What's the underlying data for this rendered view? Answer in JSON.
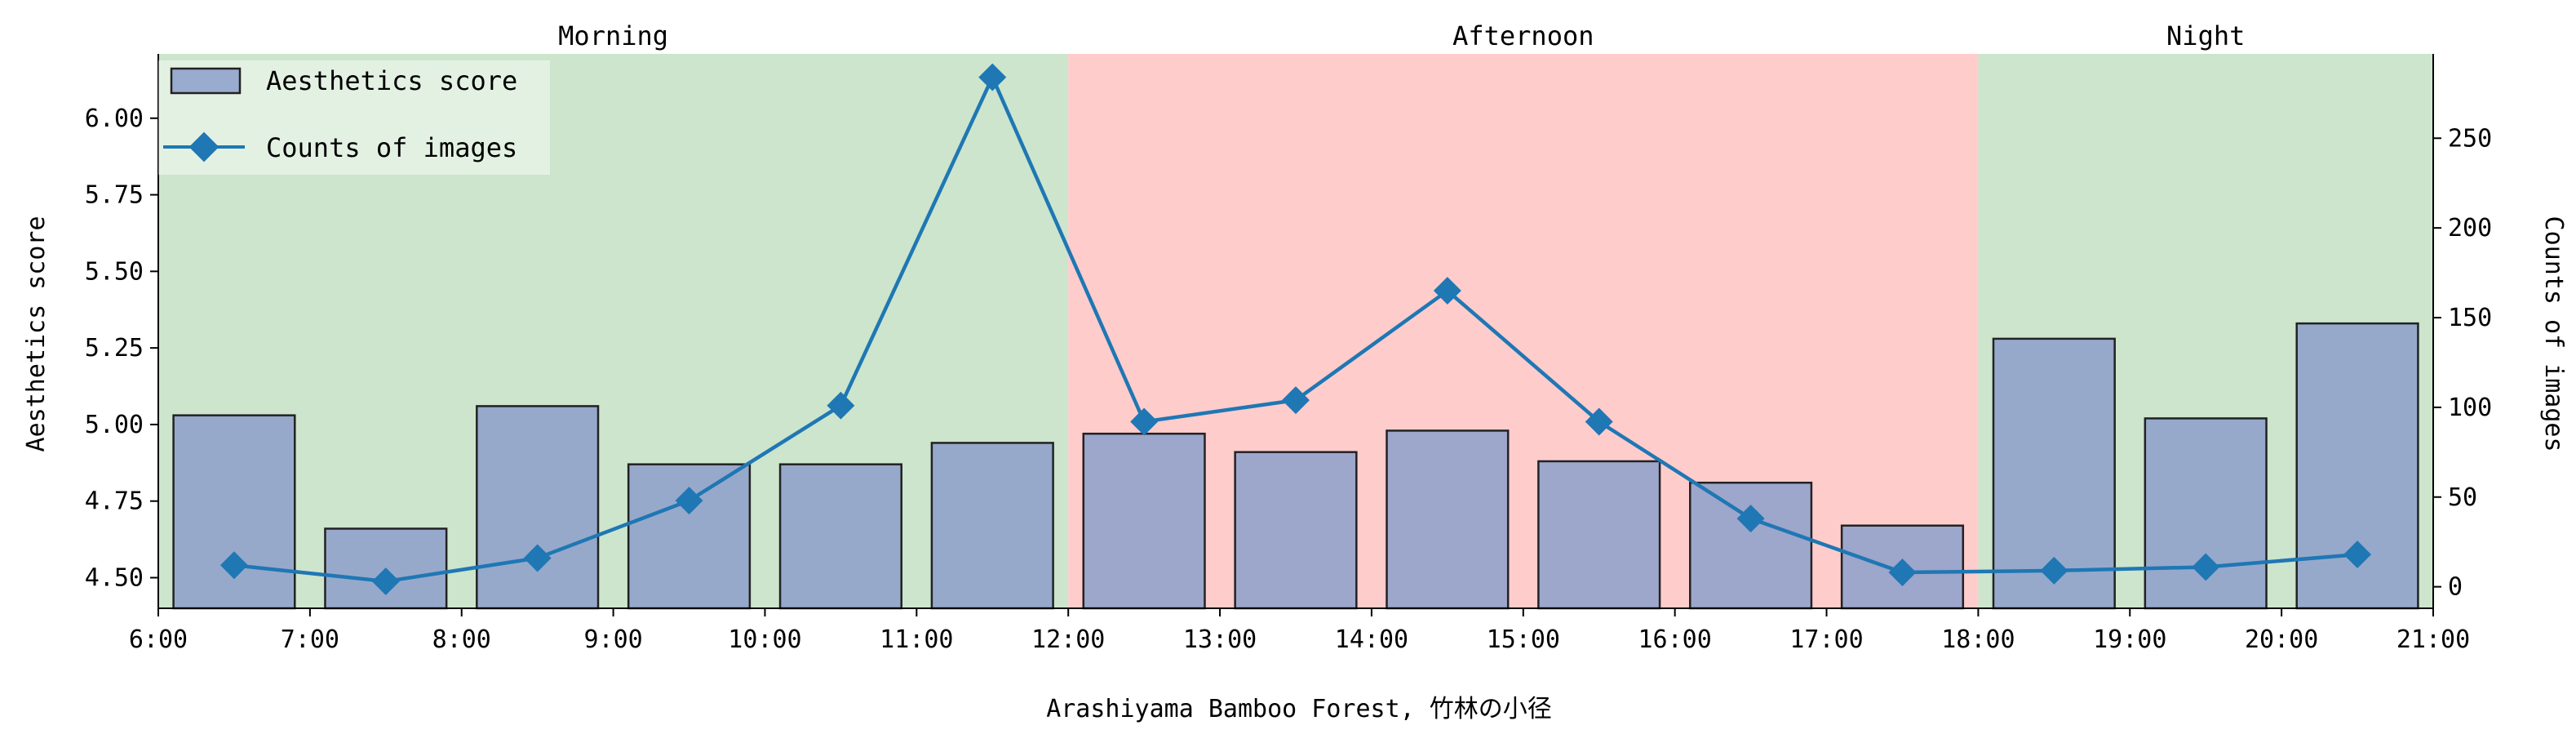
{
  "chart_data": {
    "type": "bar+line",
    "xlabel": "Arashiyama Bamboo Forest, 竹林の小径",
    "x_ticks": [
      "6:00",
      "7:00",
      "8:00",
      "9:00",
      "10:00",
      "11:00",
      "12:00",
      "13:00",
      "14:00",
      "15:00",
      "16:00",
      "17:00",
      "18:00",
      "19:00",
      "20:00",
      "21:00"
    ],
    "xlim": [
      6,
      21
    ],
    "periods": [
      {
        "name": "Morning",
        "start": 6,
        "end": 12,
        "color": "#cce5cc"
      },
      {
        "name": "Afternoon",
        "start": 12,
        "end": 18,
        "color": "#ffcccc"
      },
      {
        "name": "Night",
        "start": 18,
        "end": 21,
        "color": "#cce5cc"
      }
    ],
    "bar_centers": [
      6.5,
      7.5,
      8.5,
      9.5,
      10.5,
      11.5,
      12.5,
      13.5,
      14.5,
      15.5,
      16.5,
      17.5,
      18.5,
      19.5,
      20.5
    ],
    "series": [
      {
        "name": "Aesthetics score",
        "kind": "bar",
        "axis": "left",
        "color": "#8c9fca",
        "values": [
          5.03,
          4.66,
          5.06,
          4.87,
          4.87,
          4.94,
          4.97,
          4.91,
          4.98,
          4.88,
          4.81,
          4.67,
          5.28,
          5.02,
          5.33
        ]
      },
      {
        "name": "Counts of images",
        "kind": "line",
        "axis": "right",
        "color": "#1f77b4",
        "values": [
          12,
          3,
          16,
          48,
          101,
          284,
          92,
          104,
          165,
          92,
          38,
          8,
          9,
          11,
          18
        ]
      }
    ],
    "y_left": {
      "label": "Aesthetics score",
      "ylim": [
        4.4,
        6.21
      ],
      "ticks": [
        "4.50",
        "4.75",
        "5.00",
        "5.25",
        "5.50",
        "5.75",
        "6.00"
      ]
    },
    "y_right": {
      "label": "Counts of images",
      "ylim": [
        -12,
        297
      ],
      "ticks": [
        "0",
        "50",
        "100",
        "150",
        "200",
        "250"
      ]
    },
    "legend": {
      "position": "top-left",
      "entries": [
        "Aesthetics score",
        "Counts of images"
      ]
    },
    "grid": false
  }
}
